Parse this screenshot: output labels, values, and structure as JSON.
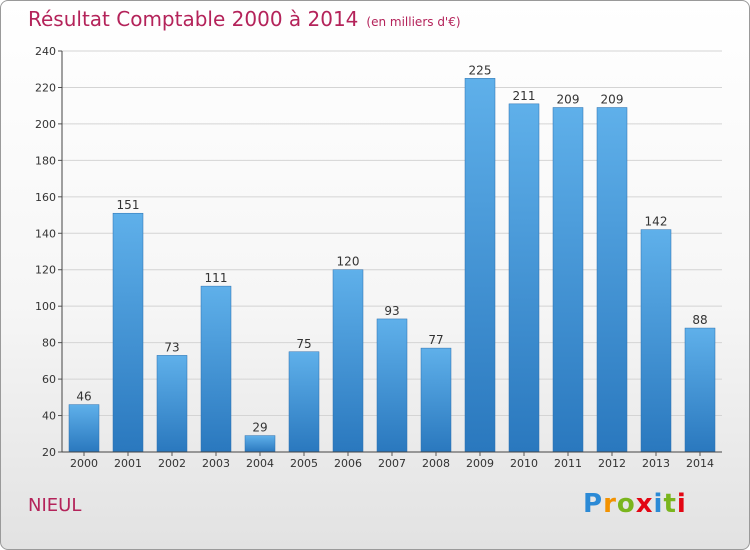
{
  "header": {
    "title": "Résultat Comptable 2000 à 2014",
    "subtitle": "(en milliers d'€)"
  },
  "commune": "NIEUL",
  "logo": {
    "text": "Proxiti",
    "colors": [
      "#2b8ad6",
      "#f39200",
      "#7ab51d",
      "#e30613",
      "#2b8ad6",
      "#7ab51d",
      "#e30613"
    ]
  },
  "chart_data": {
    "type": "bar",
    "title": "Résultat Comptable 2000 à 2014",
    "xlabel": "",
    "ylabel": "",
    "ylim": [
      20,
      240
    ],
    "yticks": [
      20,
      40,
      60,
      80,
      100,
      120,
      140,
      160,
      180,
      200,
      220,
      240
    ],
    "grid": true,
    "categories": [
      "2000",
      "2001",
      "2002",
      "2003",
      "2004",
      "2005",
      "2006",
      "2007",
      "2008",
      "2009",
      "2010",
      "2011",
      "2012",
      "2013",
      "2014"
    ],
    "values": [
      46,
      151,
      73,
      111,
      29,
      75,
      120,
      93,
      77,
      225,
      211,
      209,
      209,
      142,
      88
    ],
    "bar_color_top": "#5fb0ea",
    "bar_color_bottom": "#2a78be"
  }
}
